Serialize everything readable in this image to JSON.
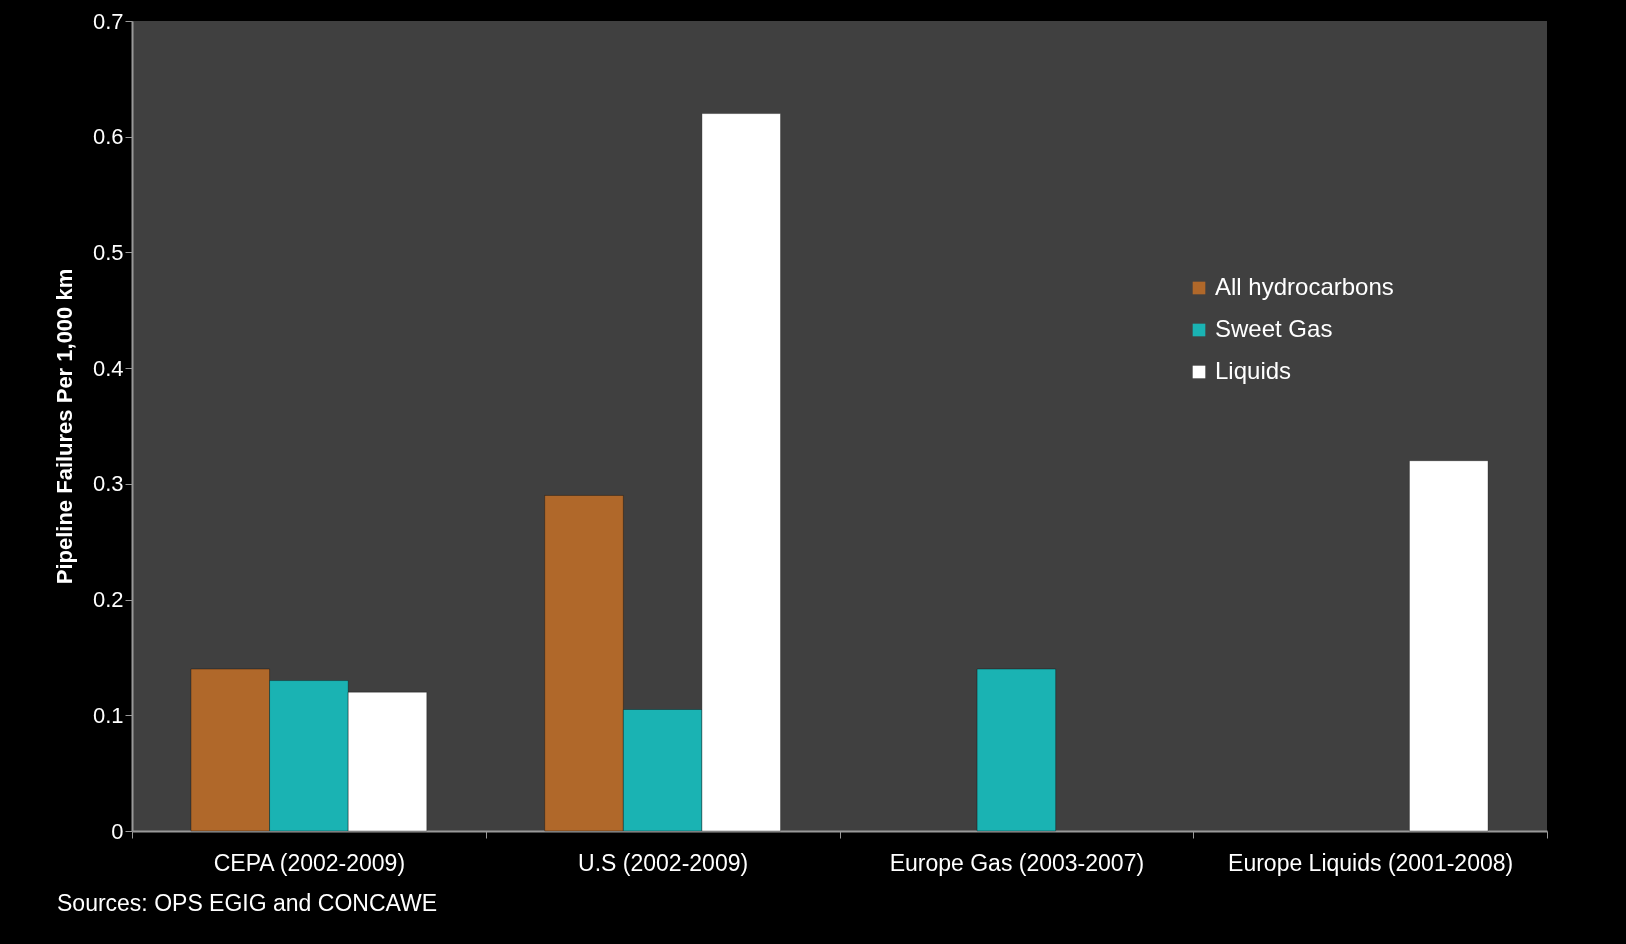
{
  "chart_data": {
    "type": "bar",
    "ylabel": "Pipeline Failures Per 1,000 km",
    "categories": [
      "CEPA (2002-2009)",
      "U.S (2002-2009)",
      "Europe Gas (2003-2007)",
      "Europe Liquids (2001-2008)"
    ],
    "series": [
      {
        "name": "All hydrocarbons",
        "color": "#b0682a",
        "values": [
          0.14,
          0.29,
          null,
          null
        ]
      },
      {
        "name": "Sweet Gas",
        "color": "#1ab3b3",
        "values": [
          0.13,
          0.105,
          0.14,
          null
        ]
      },
      {
        "name": "Liquids",
        "color": "#ffffff",
        "values": [
          0.12,
          0.62,
          null,
          0.32
        ]
      }
    ],
    "ylim": [
      0,
      0.7
    ],
    "yticks": [
      0,
      0.1,
      0.2,
      0.3,
      0.4,
      0.5,
      0.6,
      0.7
    ],
    "grid": false,
    "legend": "top right",
    "annotations": [
      "Sources:  OPS EGIG and CONCAWE"
    ]
  }
}
